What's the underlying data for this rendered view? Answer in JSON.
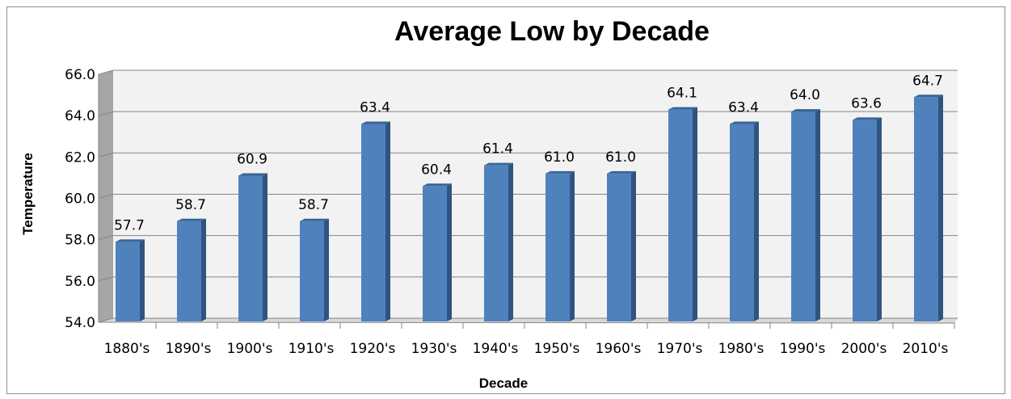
{
  "chart_data": {
    "type": "bar",
    "title": "Average Low by Decade",
    "xlabel": "Decade",
    "ylabel": "Temperature",
    "categories": [
      "1880's",
      "1890's",
      "1900's",
      "1910's",
      "1920's",
      "1930's",
      "1940's",
      "1950's",
      "1960's",
      "1970's",
      "1980's",
      "1990's",
      "2000's",
      "2010's"
    ],
    "values": [
      57.7,
      58.7,
      60.9,
      58.7,
      63.4,
      60.4,
      61.4,
      61.0,
      61.0,
      64.1,
      63.4,
      64.0,
      63.6,
      64.7
    ],
    "ylim": [
      54.0,
      66.0
    ],
    "yticks": [
      "54.0",
      "56.0",
      "58.0",
      "60.0",
      "62.0",
      "64.0",
      "66.0"
    ],
    "grid": true,
    "legend": "none",
    "colors": {
      "bar_front": "#4f81bd",
      "bar_side": "#2f5480",
      "bar_top": "#3a6495",
      "wall": "#f2f2f2",
      "gridline": "#868686"
    }
  }
}
